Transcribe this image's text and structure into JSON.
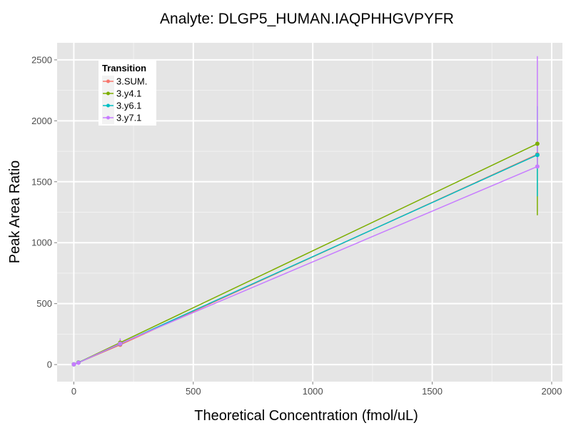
{
  "chart_data": {
    "type": "line",
    "title": "Analyte: DLGP5_HUMAN.IAQPHHGVPYFR",
    "xlabel": "Theoretical Concentration (fmol/uL)",
    "ylabel": "Peak Area Ratio",
    "xlim": [
      -70,
      2045
    ],
    "ylim": [
      -140,
      2640
    ],
    "x_ticks": [
      0,
      500,
      1000,
      1500,
      2000
    ],
    "x_tick_labels": [
      "0",
      "500",
      "1000",
      "1500",
      "2000"
    ],
    "y_ticks": [
      0,
      500,
      1000,
      1500,
      2000,
      2500
    ],
    "y_tick_labels": [
      "0",
      "500",
      "1000",
      "1500",
      "2000",
      "2500"
    ],
    "grid": true,
    "legend_title": "Transition",
    "legend_position": "top-left",
    "series": [
      {
        "name": "3.SUM.",
        "color": "#F8766D",
        "points": [
          {
            "x": 0,
            "y": 2
          },
          {
            "x": 19.4,
            "y": 16
          },
          {
            "x": 194,
            "y": 162
          },
          {
            "x": 1940,
            "y": 1725
          }
        ],
        "error_bars": []
      },
      {
        "name": "3.y4.1",
        "color": "#7CAE00",
        "points": [
          {
            "x": 0,
            "y": 2
          },
          {
            "x": 19.4,
            "y": 17
          },
          {
            "x": 194,
            "y": 180
          },
          {
            "x": 1940,
            "y": 1812
          }
        ],
        "error_bars": [
          {
            "x": 1940,
            "low": 1225,
            "high": 1812
          }
        ]
      },
      {
        "name": "3.y6.1",
        "color": "#00BFC4",
        "points": [
          {
            "x": 0,
            "y": 2
          },
          {
            "x": 19.4,
            "y": 16
          },
          {
            "x": 194,
            "y": 170
          },
          {
            "x": 1940,
            "y": 1720
          }
        ],
        "error_bars": [
          {
            "x": 1940,
            "low": 1380,
            "high": 2120
          }
        ]
      },
      {
        "name": "3.y7.1",
        "color": "#C77CFF",
        "points": [
          {
            "x": 0,
            "y": 2
          },
          {
            "x": 19.4,
            "y": 15
          },
          {
            "x": 194,
            "y": 172
          },
          {
            "x": 1940,
            "y": 1625
          }
        ],
        "error_bars": [
          {
            "x": 194,
            "low": 155,
            "high": 215
          },
          {
            "x": 1940,
            "low": 1625,
            "high": 2530
          }
        ]
      }
    ]
  }
}
